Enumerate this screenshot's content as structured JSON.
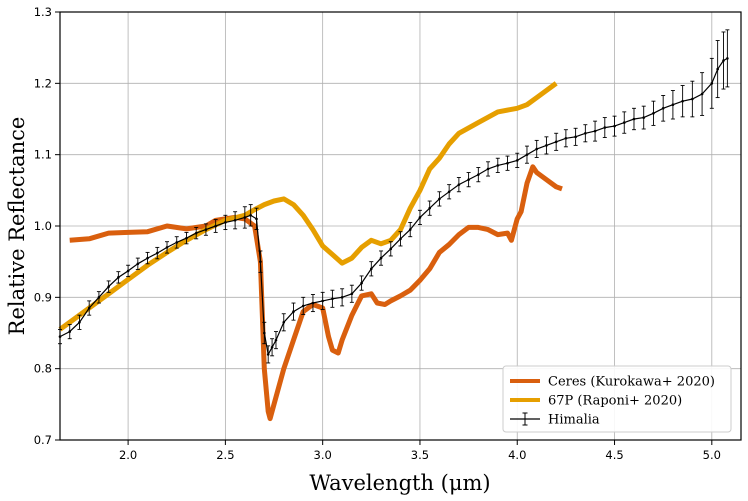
{
  "chart_data": {
    "type": "line",
    "title": "",
    "xlabel": "Wavelength (μm)",
    "ylabel": "Relative Reflectance",
    "xlim": [
      1.65,
      5.15
    ],
    "ylim": [
      0.7,
      1.3
    ],
    "xticks": [
      2.0,
      2.5,
      3.0,
      3.5,
      4.0,
      4.5,
      5.0
    ],
    "xtick_labels": [
      "2.0",
      "2.5",
      "3.0",
      "3.5",
      "4.0",
      "4.5",
      "5.0"
    ],
    "yticks": [
      0.7,
      0.8,
      0.9,
      1.0,
      1.1,
      1.2,
      1.3
    ],
    "ytick_labels": [
      "0.7",
      "0.8",
      "0.9",
      "1.0",
      "1.1",
      "1.2",
      "1.3"
    ],
    "grid": true,
    "legend_position": "bottom-right",
    "series": [
      {
        "name": "Ceres (Kurokawa+ 2020)",
        "color": "#d95f0e",
        "style": "line",
        "x": [
          1.7,
          1.8,
          1.9,
          2.0,
          2.1,
          2.2,
          2.3,
          2.4,
          2.45,
          2.5,
          2.55,
          2.6,
          2.65,
          2.68,
          2.7,
          2.72,
          2.73,
          2.75,
          2.8,
          2.85,
          2.9,
          2.95,
          3.0,
          3.03,
          3.05,
          3.08,
          3.1,
          3.15,
          3.2,
          3.25,
          3.28,
          3.32,
          3.35,
          3.4,
          3.45,
          3.5,
          3.55,
          3.6,
          3.65,
          3.7,
          3.75,
          3.8,
          3.85,
          3.9,
          3.95,
          3.97,
          4.0,
          4.02,
          4.05,
          4.08,
          4.1,
          4.15,
          4.2,
          4.23
        ],
        "y": [
          0.98,
          0.982,
          0.99,
          0.991,
          0.992,
          1.0,
          0.996,
          1.0,
          1.008,
          1.01,
          1.012,
          1.01,
          1.0,
          0.95,
          0.8,
          0.74,
          0.73,
          0.75,
          0.8,
          0.84,
          0.88,
          0.89,
          0.885,
          0.845,
          0.826,
          0.822,
          0.84,
          0.875,
          0.902,
          0.905,
          0.892,
          0.89,
          0.895,
          0.902,
          0.91,
          0.924,
          0.94,
          0.963,
          0.974,
          0.988,
          0.998,
          0.998,
          0.995,
          0.988,
          0.99,
          0.98,
          1.01,
          1.02,
          1.06,
          1.083,
          1.075,
          1.065,
          1.055,
          1.052
        ]
      },
      {
        "name": "67P (Raponi+ 2020)",
        "color": "#e69f00",
        "style": "line",
        "x": [
          1.65,
          1.7,
          1.8,
          1.9,
          2.0,
          2.1,
          2.2,
          2.3,
          2.4,
          2.5,
          2.6,
          2.65,
          2.7,
          2.75,
          2.8,
          2.85,
          2.9,
          2.95,
          3.0,
          3.05,
          3.1,
          3.15,
          3.2,
          3.25,
          3.3,
          3.35,
          3.4,
          3.45,
          3.5,
          3.55,
          3.6,
          3.65,
          3.7,
          3.8,
          3.9,
          4.0,
          4.05,
          4.1,
          4.15,
          4.2
        ],
        "y": [
          0.855,
          0.865,
          0.885,
          0.905,
          0.925,
          0.945,
          0.963,
          0.98,
          0.995,
          1.008,
          1.015,
          1.023,
          1.03,
          1.035,
          1.038,
          1.03,
          1.015,
          0.995,
          0.972,
          0.96,
          0.948,
          0.955,
          0.97,
          0.98,
          0.975,
          0.98,
          0.995,
          1.025,
          1.05,
          1.08,
          1.095,
          1.115,
          1.13,
          1.145,
          1.16,
          1.165,
          1.17,
          1.18,
          1.19,
          1.2
        ]
      },
      {
        "name": "Himalia",
        "color": "#000000",
        "style": "errorbar",
        "x": [
          1.65,
          1.7,
          1.75,
          1.8,
          1.85,
          1.9,
          1.95,
          2.0,
          2.05,
          2.1,
          2.15,
          2.2,
          2.25,
          2.3,
          2.35,
          2.4,
          2.45,
          2.5,
          2.55,
          2.6,
          2.63,
          2.66,
          2.68,
          2.7,
          2.72,
          2.74,
          2.76,
          2.8,
          2.85,
          2.9,
          2.95,
          3.0,
          3.05,
          3.1,
          3.15,
          3.2,
          3.25,
          3.3,
          3.35,
          3.4,
          3.45,
          3.5,
          3.55,
          3.6,
          3.65,
          3.7,
          3.75,
          3.8,
          3.85,
          3.9,
          3.95,
          4.0,
          4.05,
          4.1,
          4.15,
          4.2,
          4.25,
          4.3,
          4.35,
          4.4,
          4.45,
          4.5,
          4.55,
          4.6,
          4.65,
          4.7,
          4.75,
          4.8,
          4.85,
          4.9,
          4.95,
          5.0,
          5.03,
          5.06,
          5.08
        ],
        "y": [
          0.845,
          0.852,
          0.865,
          0.885,
          0.9,
          0.915,
          0.928,
          0.937,
          0.947,
          0.955,
          0.962,
          0.97,
          0.977,
          0.983,
          0.99,
          0.995,
          1.0,
          1.005,
          1.008,
          1.012,
          1.015,
          1.01,
          0.95,
          0.85,
          0.82,
          0.83,
          0.84,
          0.865,
          0.88,
          0.888,
          0.892,
          0.895,
          0.898,
          0.9,
          0.905,
          0.92,
          0.94,
          0.955,
          0.968,
          0.982,
          0.995,
          1.012,
          1.025,
          1.038,
          1.048,
          1.058,
          1.065,
          1.072,
          1.08,
          1.085,
          1.088,
          1.092,
          1.1,
          1.108,
          1.113,
          1.118,
          1.123,
          1.125,
          1.13,
          1.133,
          1.138,
          1.14,
          1.145,
          1.15,
          1.152,
          1.158,
          1.165,
          1.17,
          1.175,
          1.178,
          1.185,
          1.2,
          1.22,
          1.232,
          1.235
        ],
        "err": [
          0.01,
          0.01,
          0.01,
          0.01,
          0.008,
          0.008,
          0.008,
          0.008,
          0.008,
          0.008,
          0.008,
          0.008,
          0.008,
          0.008,
          0.008,
          0.008,
          0.009,
          0.01,
          0.012,
          0.015,
          0.015,
          0.015,
          0.015,
          0.015,
          0.012,
          0.012,
          0.012,
          0.012,
          0.012,
          0.012,
          0.012,
          0.012,
          0.012,
          0.012,
          0.012,
          0.01,
          0.01,
          0.01,
          0.01,
          0.01,
          0.01,
          0.01,
          0.01,
          0.01,
          0.01,
          0.01,
          0.01,
          0.01,
          0.01,
          0.01,
          0.01,
          0.01,
          0.012,
          0.012,
          0.012,
          0.012,
          0.012,
          0.012,
          0.012,
          0.014,
          0.014,
          0.014,
          0.015,
          0.015,
          0.016,
          0.017,
          0.018,
          0.02,
          0.022,
          0.025,
          0.03,
          0.035,
          0.04,
          0.04,
          0.04
        ]
      }
    ]
  }
}
